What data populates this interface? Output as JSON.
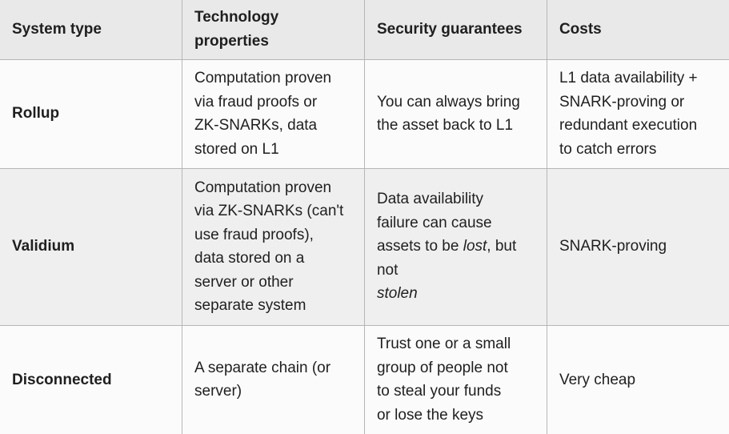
{
  "colors": {
    "header_bg": "#e9e9e9",
    "stripe_bg": "#efefef",
    "row_bg": "#fbfbfb",
    "border": "#b6b6b6",
    "text": "#1f1f1f"
  },
  "table": {
    "headers": [
      "System type",
      "Technology\nproperties",
      "Security guarantees",
      "Costs"
    ],
    "rows": [
      {
        "system": "Rollup",
        "technology": "Computation proven\nvia fraud proofs or\nZK-SNARKs, data\nstored on L1",
        "security": "You can always bring\nthe asset back to L1",
        "costs": "L1 data availability +\nSNARK-proving or\nredundant execution\nto catch errors"
      },
      {
        "system": "Validium",
        "technology": "Computation proven\nvia ZK-SNARKs (can't\nuse fraud proofs),\ndata stored on a\nserver or other\nseparate system",
        "security_pre": "Data availability\nfailure can cause\nassets to be ",
        "security_em_lost": "lost",
        "security_mid": ", but not\n",
        "security_em_stolen": "stolen",
        "costs": "SNARK-proving"
      },
      {
        "system": "Disconnected",
        "technology": "A separate chain (or\nserver)",
        "security": "Trust one or a small\ngroup of people not\nto steal your funds\nor lose the keys",
        "costs": "Very cheap"
      }
    ]
  }
}
